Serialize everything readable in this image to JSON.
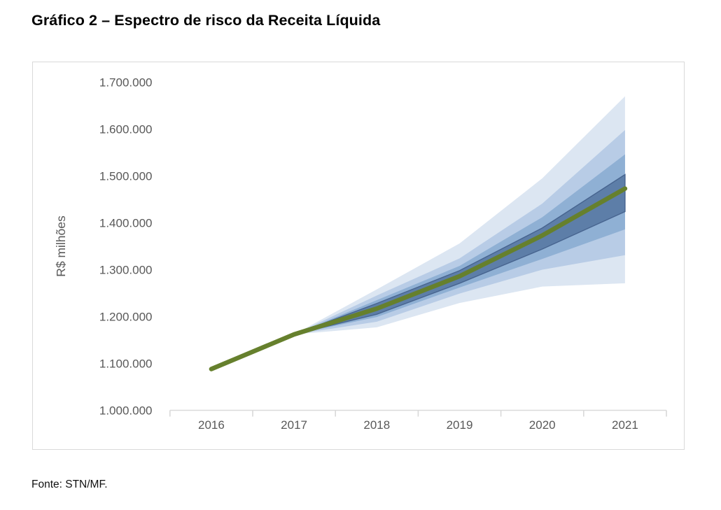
{
  "page": {
    "title": "Gráfico 2 – Espectro de risco da Receita Líquida",
    "source": "Fonte: STN/MF."
  },
  "chart_data": {
    "type": "area",
    "subtype": "fan-chart",
    "title": "Gráfico 2 – Espectro de risco da Receita Líquida",
    "xlabel": "",
    "ylabel": "R$ milhões",
    "categories": [
      "2016",
      "2017",
      "2018",
      "2019",
      "2020",
      "2021"
    ],
    "ylim": [
      1000000,
      1700000
    ],
    "y_tick_step": 100000,
    "y_tick_labels": [
      "1.000.000",
      "1.100.000",
      "1.200.000",
      "1.300.000",
      "1.400.000",
      "1.500.000",
      "1.600.000",
      "1.700.000"
    ],
    "grid": false,
    "legend_position": "none",
    "axis_color": "#d9d9d9",
    "tick_label_color": "#595959",
    "central_line": {
      "name": "receita-liquida-central",
      "color": "#66802d",
      "width": 6.5,
      "values": [
        1088000,
        1162000,
        1217000,
        1286000,
        1373000,
        1473000
      ]
    },
    "bands": [
      {
        "name": "band-outermost",
        "color": "#dce6f2",
        "start_index": 1,
        "upper": [
          1162000,
          1258000,
          1356000,
          1495000,
          1670000
        ],
        "lower": [
          1162000,
          1177000,
          1229000,
          1264000,
          1271000
        ]
      },
      {
        "name": "band-outer-mid",
        "color": "#b8cce6",
        "start_index": 1,
        "upper": [
          1162000,
          1245000,
          1324000,
          1441000,
          1598000
        ],
        "lower": [
          1162000,
          1189000,
          1249000,
          1300000,
          1331000
        ]
      },
      {
        "name": "band-inner-mid",
        "color": "#8fb0d4",
        "start_index": 1,
        "upper": [
          1162000,
          1235000,
          1308000,
          1412000,
          1546000
        ],
        "lower": [
          1162000,
          1199000,
          1262000,
          1323000,
          1386000
        ]
      },
      {
        "name": "band-innermost",
        "color": "#5d7ea8",
        "stroke": "#47648f",
        "start_index": 1,
        "upper": [
          1162000,
          1228000,
          1298000,
          1389000,
          1503000
        ],
        "lower": [
          1162000,
          1205000,
          1271000,
          1344000,
          1424000
        ]
      }
    ]
  }
}
